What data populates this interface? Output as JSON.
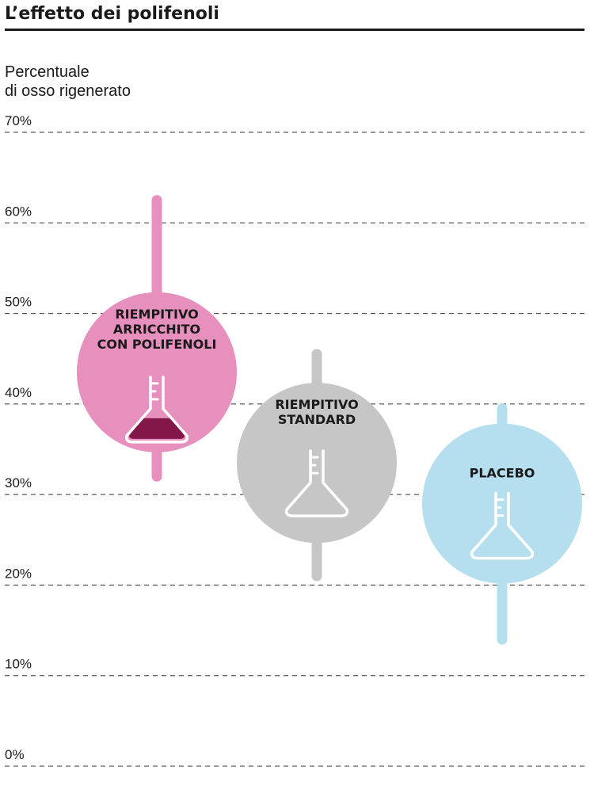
{
  "chart_data": {
    "type": "scatter",
    "title": "L’effetto dei polifenoli",
    "ylabel": [
      "Percentuale",
      "di osso rigenerato"
    ],
    "ylim": [
      0,
      70
    ],
    "yticks": [
      "0%",
      "10%",
      "20%",
      "30%",
      "40%",
      "50%",
      "60%",
      "70%"
    ],
    "grid": true,
    "series": [
      {
        "label_lines": [
          "RIEMPITIVO",
          "ARRICCHITO",
          "CON POLIFENOLI"
        ],
        "value": 43.5,
        "range": [
          32,
          62.5
        ],
        "color": "#e78fbd",
        "icon": "flask-filled-icon",
        "liquid_color": "#82174a"
      },
      {
        "label_lines": [
          "RIEMPITIVO",
          "STANDARD"
        ],
        "value": 33.5,
        "range": [
          21,
          45.5
        ],
        "color": "#c6c6c6",
        "icon": "flask-empty-icon"
      },
      {
        "label_lines": [
          "PLACEBO"
        ],
        "value": 29,
        "range": [
          14,
          39.5
        ],
        "color": "#b5dfef",
        "icon": "flask-empty-icon"
      }
    ]
  }
}
